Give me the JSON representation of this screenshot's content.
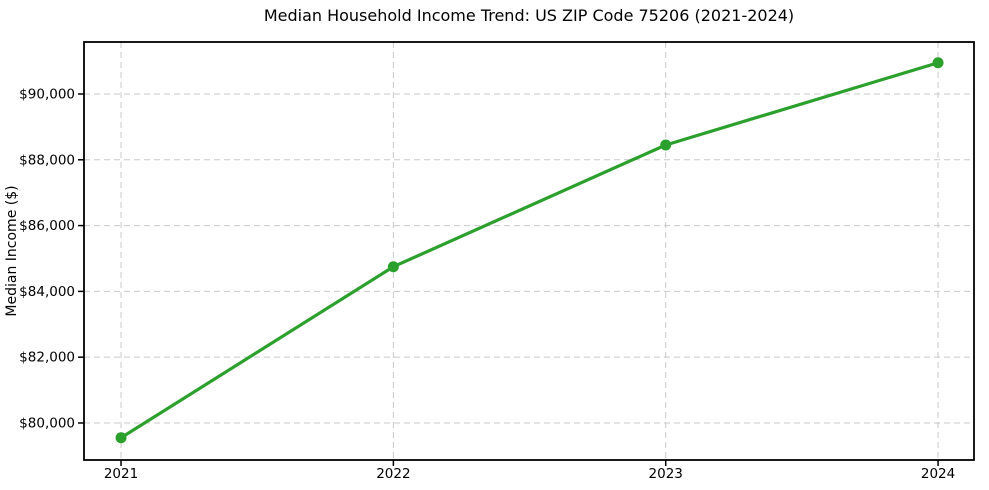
{
  "chart_data": {
    "type": "line",
    "title": "Median Household Income Trend: US ZIP Code 75206 (2021-2024)",
    "xlabel": "",
    "ylabel": "Median Income ($)",
    "x": [
      2021,
      2022,
      2023,
      2024
    ],
    "values": [
      79550,
      84750,
      88450,
      90950
    ],
    "xticks": [
      {
        "value": 2021,
        "label": "2021"
      },
      {
        "value": 2022,
        "label": "2022"
      },
      {
        "value": 2023,
        "label": "2023"
      },
      {
        "value": 2024,
        "label": "2024"
      }
    ],
    "yticks": [
      {
        "value": 80000,
        "label": "$80,000"
      },
      {
        "value": 82000,
        "label": "$82,000"
      },
      {
        "value": 84000,
        "label": "$84,000"
      },
      {
        "value": 86000,
        "label": "$86,000"
      },
      {
        "value": 88000,
        "label": "$88,000"
      },
      {
        "value": 90000,
        "label": "$90,000"
      }
    ],
    "xlim": [
      2020.864,
      2024.132
    ],
    "ylim": [
      78875,
      91580
    ],
    "grid": "both, dashed",
    "legend": "none",
    "line_color": "#2ca02c",
    "marker_color": "#2ca02c",
    "marker_style": "circle",
    "grid_color": "#c9c9c9",
    "axis_color": "#000000",
    "background_color": "#ffffff"
  }
}
